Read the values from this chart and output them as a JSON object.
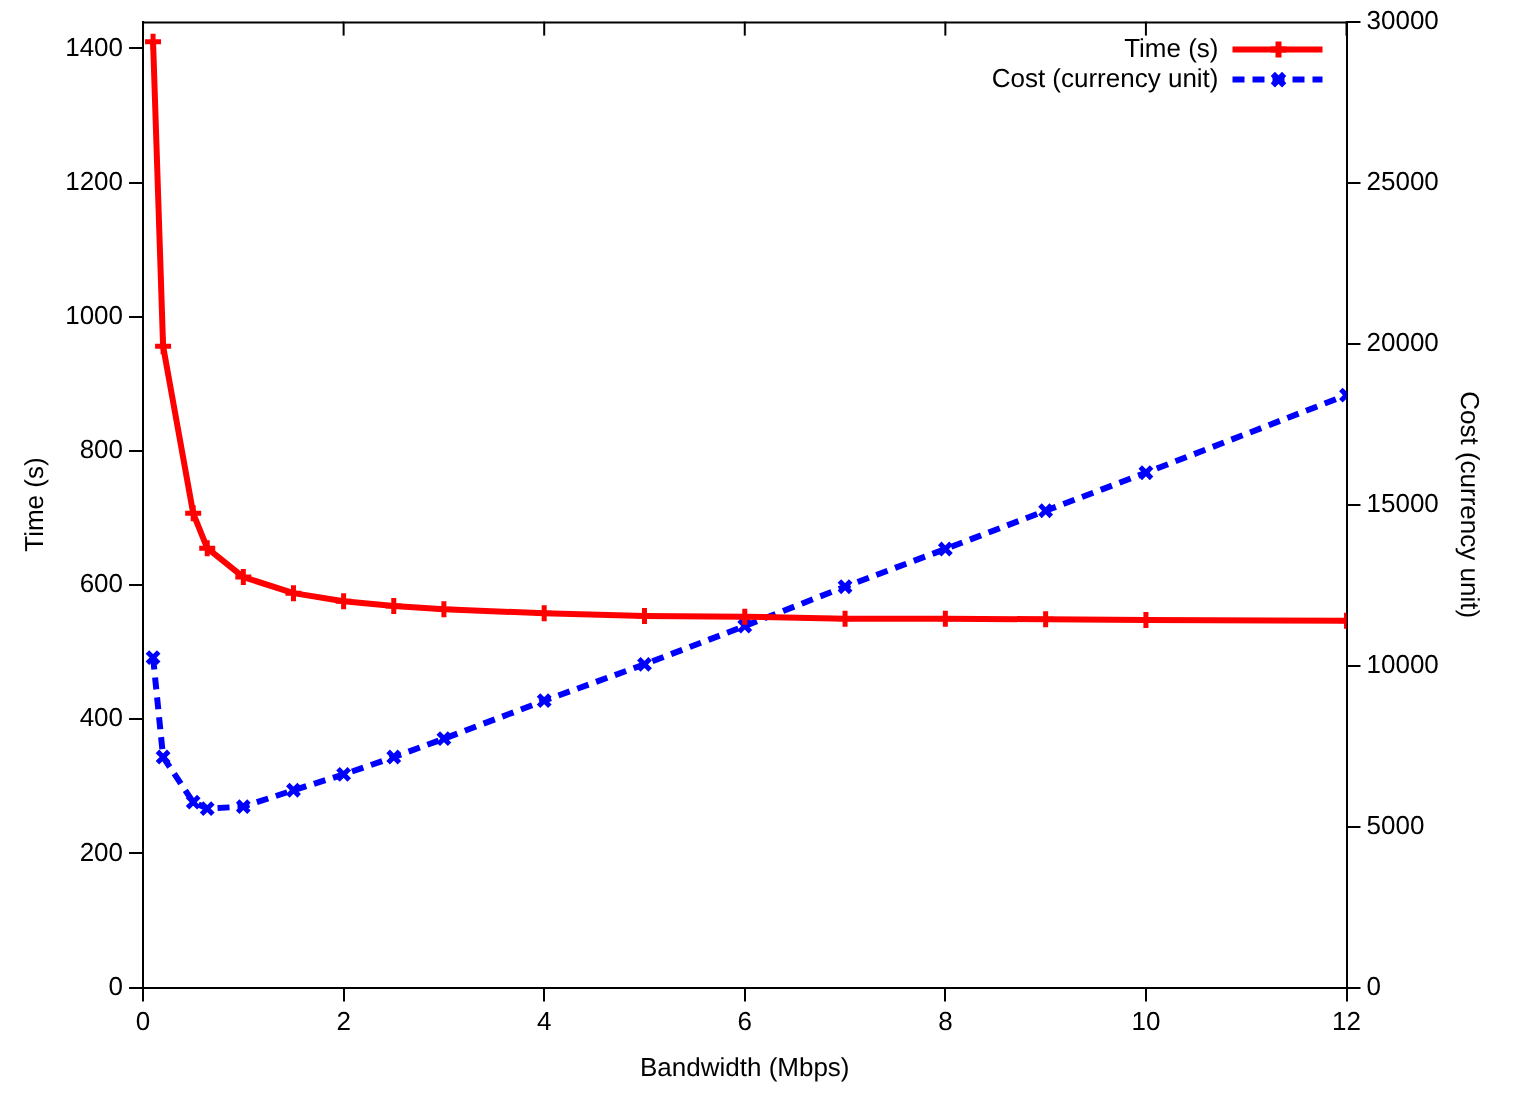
{
  "chart_data": {
    "type": "line",
    "xlabel": "Bandwidth (Mbps)",
    "ylabel": "Time (s)",
    "y2label": "Cost (currency unit)",
    "xlim": [
      0,
      12
    ],
    "xticks": [
      0,
      2,
      4,
      6,
      8,
      10,
      12
    ],
    "ylim": [
      0,
      1440
    ],
    "yticks": [
      0,
      200,
      400,
      600,
      800,
      1000,
      1200,
      1400
    ],
    "y2lim": [
      0,
      30000
    ],
    "y2ticks": [
      0,
      5000,
      10000,
      15000,
      20000,
      25000,
      30000
    ],
    "grid": false,
    "legend": "top right",
    "series": [
      {
        "name": "Time (s)",
        "color": "#ff0000",
        "line_style": "solid",
        "marker": "cross",
        "x": [
          0.1,
          0.2,
          0.5,
          0.64,
          1,
          1.5,
          2,
          2.5,
          3,
          4,
          5,
          6,
          7,
          8,
          9,
          10,
          12
        ],
        "values": [
          1410,
          956,
          707,
          655,
          612,
          588,
          576,
          569,
          564,
          558,
          554,
          553,
          550,
          550,
          549,
          548,
          547
        ]
      },
      {
        "name": "Cost (currency unit)",
        "color": "#0000ff",
        "line_style": "dashed",
        "marker": "x",
        "axis": "y2",
        "x": [
          0.1,
          0.2,
          0.5,
          0.64,
          1,
          1.5,
          2,
          2.5,
          3,
          4,
          5,
          6,
          7,
          8,
          9,
          10,
          12
        ],
        "values": [
          10250,
          7160,
          5760,
          5560,
          5620,
          6130,
          6620,
          7160,
          7730,
          8910,
          10040,
          11230,
          12450,
          13620,
          14810,
          15990,
          18400
        ]
      }
    ]
  }
}
